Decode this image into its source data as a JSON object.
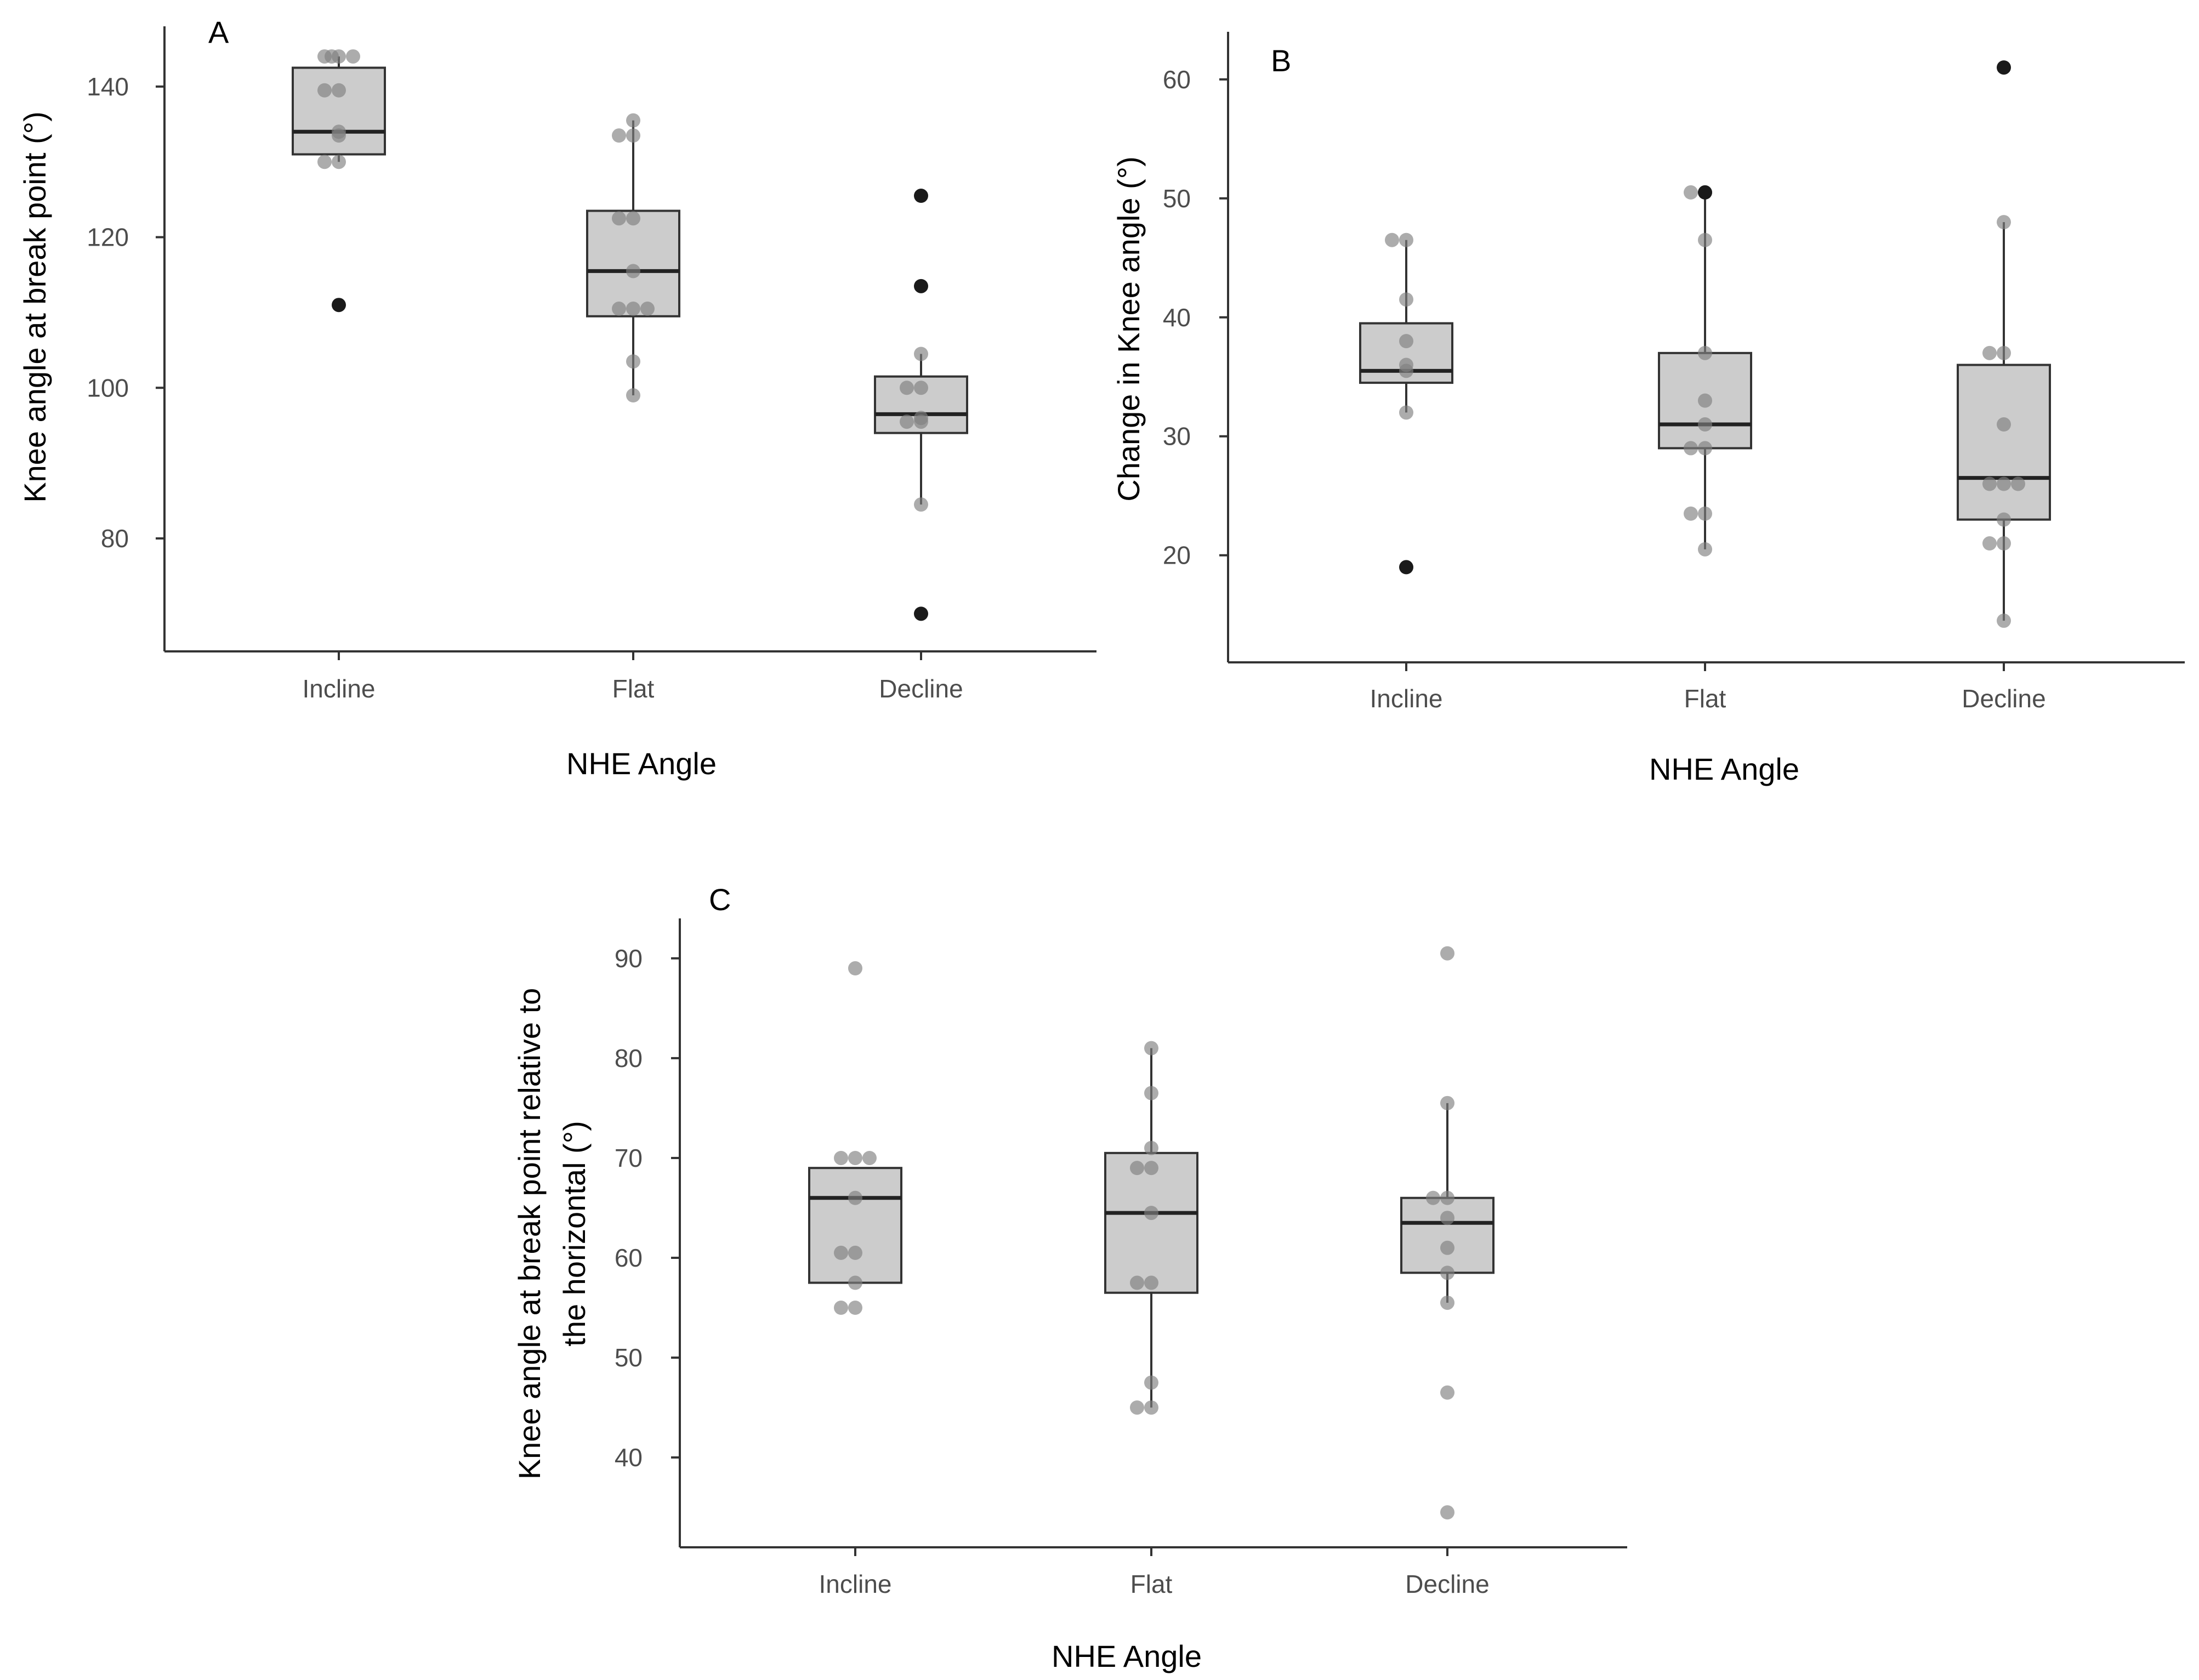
{
  "chart_data": [
    {
      "type": "box",
      "panel_label": "A",
      "xlabel": "NHE Angle",
      "ylabel": "Knee angle at break point (°)",
      "ylim": [
        65,
        148
      ],
      "yticks": [
        80,
        100,
        120,
        140
      ],
      "ytick_labels": [
        "80",
        "100",
        "120",
        "140"
      ],
      "categories": [
        "Incline",
        "Flat",
        "Decline"
      ],
      "boxes": [
        {
          "category": "Incline",
          "q1": 131,
          "median": 134,
          "q3": 142.5,
          "whisker_low": 130,
          "whisker_high": 144
        },
        {
          "category": "Flat",
          "q1": 109.5,
          "median": 115.5,
          "q3": 123.5,
          "whisker_low": 99,
          "whisker_high": 135.5
        },
        {
          "category": "Decline",
          "q1": 94,
          "median": 96.5,
          "q3": 101.5,
          "whisker_low": 84.5,
          "whisker_high": 104.5
        }
      ],
      "outliers": [
        {
          "category": "Incline",
          "value": 111
        },
        {
          "category": "Decline",
          "value": 125.5
        },
        {
          "category": "Decline",
          "value": 113.5
        },
        {
          "category": "Decline",
          "value": 70
        }
      ],
      "points": [
        {
          "category": "Incline",
          "values": [
            144,
            144,
            144,
            144,
            139.5,
            139.5,
            134,
            133.5,
            130,
            130
          ]
        },
        {
          "category": "Flat",
          "values": [
            135.5,
            133.5,
            133.5,
            122.5,
            122.5,
            115.5,
            110.5,
            110.5,
            110.5,
            103.5,
            99
          ]
        },
        {
          "category": "Decline",
          "values": [
            104.5,
            100,
            100,
            96,
            95.5,
            95.5,
            84.5
          ]
        }
      ]
    },
    {
      "type": "box",
      "panel_label": "B",
      "xlabel": "NHE Angle",
      "ylabel": "Change in Knee angle (°)",
      "ylim": [
        11,
        64
      ],
      "yticks": [
        20,
        30,
        40,
        50,
        60
      ],
      "ytick_labels": [
        "20",
        "30",
        "40",
        "50",
        "60"
      ],
      "categories": [
        "Incline",
        "Flat",
        "Decline"
      ],
      "boxes": [
        {
          "category": "Incline",
          "q1": 34.5,
          "median": 35.5,
          "q3": 39.5,
          "whisker_low": 32,
          "whisker_high": 46.5
        },
        {
          "category": "Flat",
          "q1": 29,
          "median": 31,
          "q3": 37,
          "whisker_low": 20.5,
          "whisker_high": 50.5
        },
        {
          "category": "Decline",
          "q1": 23,
          "median": 26.5,
          "q3": 36,
          "whisker_low": 14.5,
          "whisker_high": 48
        }
      ],
      "outliers": [
        {
          "category": "Incline",
          "value": 19
        },
        {
          "category": "Flat",
          "value": 50.5
        },
        {
          "category": "Decline",
          "value": 61
        }
      ],
      "points": [
        {
          "category": "Incline",
          "values": [
            46.5,
            46.5,
            41.5,
            38,
            36,
            35.5,
            32
          ]
        },
        {
          "category": "Flat",
          "values": [
            50.5,
            50.5,
            46.5,
            37,
            33,
            31,
            29,
            29,
            23.5,
            23.5,
            20.5
          ]
        },
        {
          "category": "Decline",
          "values": [
            48,
            37,
            37,
            31,
            26,
            26,
            26,
            23,
            21,
            21,
            14.5
          ]
        }
      ]
    },
    {
      "type": "box",
      "panel_label": "C",
      "xlabel": "NHE Angle",
      "ylabel_lines": [
        "Knee angle at break point relative to",
        "the horizontal (°)"
      ],
      "ylim": [
        31,
        94
      ],
      "yticks": [
        40,
        50,
        60,
        70,
        80,
        90
      ],
      "ytick_labels": [
        "40",
        "50",
        "60",
        "70",
        "80",
        "90"
      ],
      "categories": [
        "Incline",
        "Flat",
        "Decline"
      ],
      "boxes": [
        {
          "category": "Incline",
          "q1": 57.5,
          "median": 66,
          "q3": 69,
          "whisker_low": 57.5,
          "whisker_high": 69
        },
        {
          "category": "Flat",
          "q1": 56.5,
          "median": 64.5,
          "q3": 70.5,
          "whisker_low": 45,
          "whisker_high": 81
        },
        {
          "category": "Decline",
          "q1": 58.5,
          "median": 63.5,
          "q3": 66,
          "whisker_low": 55.5,
          "whisker_high": 75.5
        }
      ],
      "outliers": [],
      "points": [
        {
          "category": "Incline",
          "values": [
            89,
            70,
            70,
            70,
            66,
            60.5,
            60.5,
            57.5,
            55,
            55
          ]
        },
        {
          "category": "Flat",
          "values": [
            81,
            76.5,
            71,
            69,
            69,
            64.5,
            57.5,
            57.5,
            47.5,
            45,
            45
          ]
        },
        {
          "category": "Decline",
          "values": [
            90.5,
            75.5,
            66,
            66,
            64,
            61,
            58.5,
            55.5,
            46.5,
            34.5
          ]
        }
      ]
    }
  ]
}
